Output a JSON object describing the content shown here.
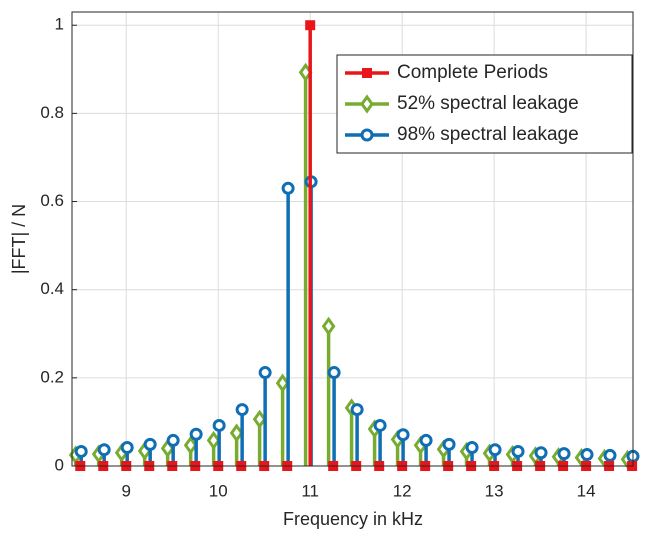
{
  "chart_data": {
    "type": "stem",
    "x_label": "Frequency in kHz",
    "y_label": "|FFT| / N",
    "xlim": [
      8.41,
      14.51
    ],
    "ylim": [
      0,
      1.03
    ],
    "xticks": [
      9,
      10,
      11,
      12,
      13,
      14
    ],
    "yticks": [
      0,
      0.2,
      0.4,
      0.6,
      0.8,
      1
    ],
    "grid": true,
    "legend": "northeast",
    "series": [
      {
        "name": "Complete Periods",
        "color": "#e8161b",
        "marker": "square",
        "x": [
          8.5,
          8.75,
          9,
          9.25,
          9.5,
          9.75,
          10,
          10.25,
          10.5,
          10.75,
          11,
          11.25,
          11.5,
          11.75,
          12,
          12.25,
          12.5,
          12.75,
          13,
          13.25,
          13.5,
          13.75,
          14,
          14.25,
          14.5
        ],
        "values": [
          0,
          0,
          0,
          0,
          0,
          0,
          0,
          0,
          0,
          0,
          1,
          0,
          0,
          0,
          0,
          0,
          0,
          0,
          0,
          0,
          0,
          0,
          0,
          0,
          0
        ]
      },
      {
        "name": "52% spectral leakage",
        "color": "#77ac30",
        "marker": "diamond",
        "x": [
          8.45,
          8.7,
          8.95,
          9.2,
          9.45,
          9.7,
          9.95,
          10.2,
          10.45,
          10.7,
          10.95,
          11.2,
          11.45,
          11.7,
          11.95,
          12.2,
          12.45,
          12.7,
          12.95,
          13.2,
          13.45,
          13.7,
          13.95,
          14.2,
          14.45
        ],
        "values": [
          0.025,
          0.027,
          0.03,
          0.034,
          0.04,
          0.047,
          0.058,
          0.075,
          0.106,
          0.188,
          0.893,
          0.317,
          0.132,
          0.084,
          0.06,
          0.047,
          0.038,
          0.033,
          0.029,
          0.026,
          0.023,
          0.021,
          0.019,
          0.017,
          0.015
        ]
      },
      {
        "name": "98% spectral leakage",
        "color": "#0f6eb4",
        "marker": "circle",
        "x": [
          8.51,
          8.76,
          9.01,
          9.26,
          9.51,
          9.76,
          10.01,
          10.26,
          10.51,
          10.76,
          11.01,
          11.26,
          11.51,
          11.76,
          12.01,
          12.26,
          12.51,
          12.76,
          13.01,
          13.26,
          13.51,
          13.76,
          14.01,
          14.26,
          14.51
        ],
        "values": [
          0.033,
          0.037,
          0.042,
          0.049,
          0.058,
          0.072,
          0.092,
          0.128,
          0.212,
          0.63,
          0.645,
          0.212,
          0.128,
          0.092,
          0.071,
          0.058,
          0.049,
          0.042,
          0.037,
          0.033,
          0.03,
          0.028,
          0.026,
          0.024,
          0.022
        ]
      }
    ]
  }
}
